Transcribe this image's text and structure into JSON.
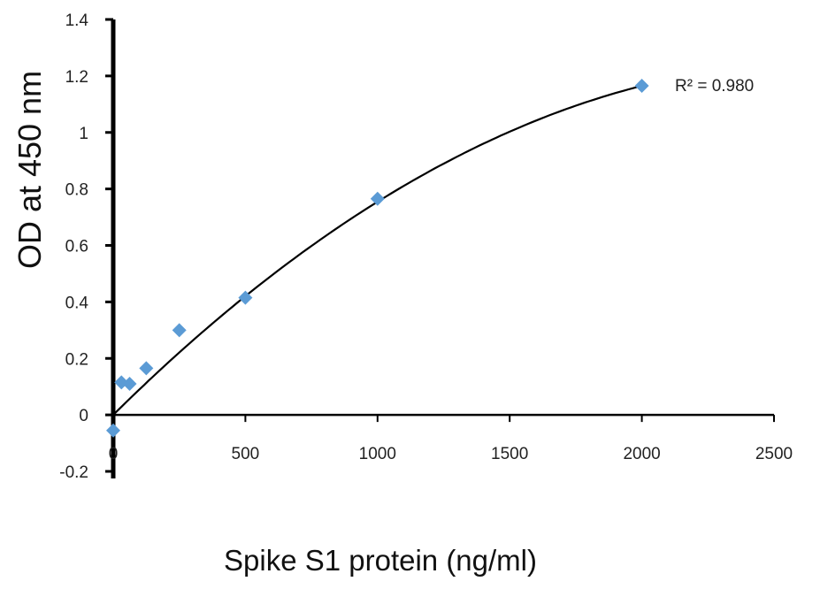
{
  "chart_data": {
    "type": "scatter",
    "xlabel": "Spike S1 protein (ng/ml)",
    "ylabel": "OD at 450 nm",
    "xlim": [
      0,
      2500
    ],
    "ylim": [
      -0.2,
      1.4
    ],
    "x_ticks": [
      0,
      500,
      1000,
      1500,
      2000,
      2500
    ],
    "y_ticks": [
      -0.2,
      0,
      0.2,
      0.4,
      0.6,
      0.8,
      1,
      1.2,
      1.4
    ],
    "x_tick_labels": [
      "0",
      "500",
      "1000",
      "1500",
      "2000",
      "2500"
    ],
    "y_tick_labels": [
      "-0.2",
      "0",
      "0.2",
      "0.4",
      "0.6",
      "0.8",
      "1",
      "1.2",
      "1.4"
    ],
    "grid": false,
    "marker_color": "#5b9bd5",
    "points": [
      {
        "x": 0,
        "y": -0.055
      },
      {
        "x": 31,
        "y": 0.115
      },
      {
        "x": 62,
        "y": 0.11
      },
      {
        "x": 125,
        "y": 0.165
      },
      {
        "x": 250,
        "y": 0.3
      },
      {
        "x": 500,
        "y": 0.415
      },
      {
        "x": 1000,
        "y": 0.765
      },
      {
        "x": 2000,
        "y": 1.165
      }
    ],
    "trendline": {
      "type": "polynomial",
      "color": "#000000",
      "label": "R² = 0.980",
      "coefficients": [
        0.0,
        0.0009265,
        -1.72e-07
      ]
    }
  }
}
